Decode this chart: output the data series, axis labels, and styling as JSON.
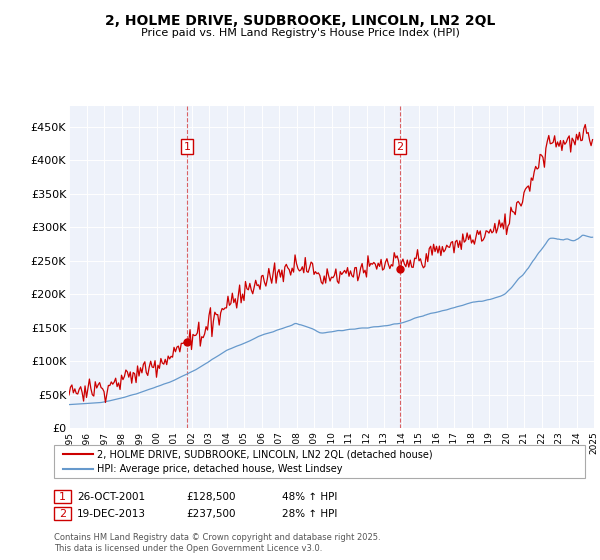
{
  "title": "2, HOLME DRIVE, SUDBROOKE, LINCOLN, LN2 2QL",
  "subtitle": "Price paid vs. HM Land Registry's House Price Index (HPI)",
  "yticks": [
    0,
    50000,
    100000,
    150000,
    200000,
    250000,
    300000,
    350000,
    400000,
    450000
  ],
  "ytick_labels": [
    "£0",
    "£50K",
    "£100K",
    "£150K",
    "£200K",
    "£250K",
    "£300K",
    "£350K",
    "£400K",
    "£450K"
  ],
  "purchase1_price": 128500,
  "purchase1_date_str": "26-OCT-2001",
  "purchase1_pct": "48% ↑ HPI",
  "purchase2_price": 237500,
  "purchase2_date_str": "19-DEC-2013",
  "purchase2_pct": "28% ↑ HPI",
  "line1_color": "#cc0000",
  "line2_color": "#6699cc",
  "vline_color": "#cc0000",
  "background_color": "#eef2fa",
  "legend1_label": "2, HOLME DRIVE, SUDBROOKE, LINCOLN, LN2 2QL (detached house)",
  "legend2_label": "HPI: Average price, detached house, West Lindsey",
  "footer": "Contains HM Land Registry data © Crown copyright and database right 2025.\nThis data is licensed under the Open Government Licence v3.0."
}
